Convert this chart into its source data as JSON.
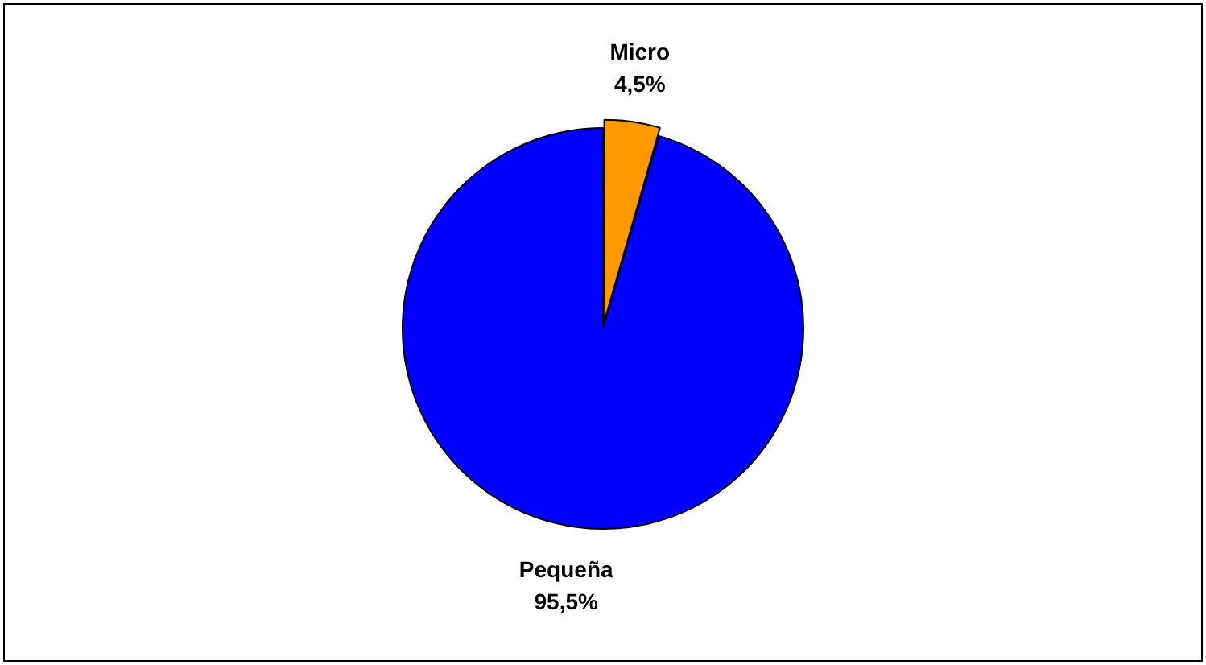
{
  "chart_data": {
    "type": "pie",
    "categories": [
      "Micro",
      "Pequeña"
    ],
    "values": [
      4.5,
      95.5
    ],
    "colors": [
      "#ff9900",
      "#0000ff"
    ],
    "value_labels": [
      "4,5%",
      "95,5%"
    ],
    "legend": false
  }
}
